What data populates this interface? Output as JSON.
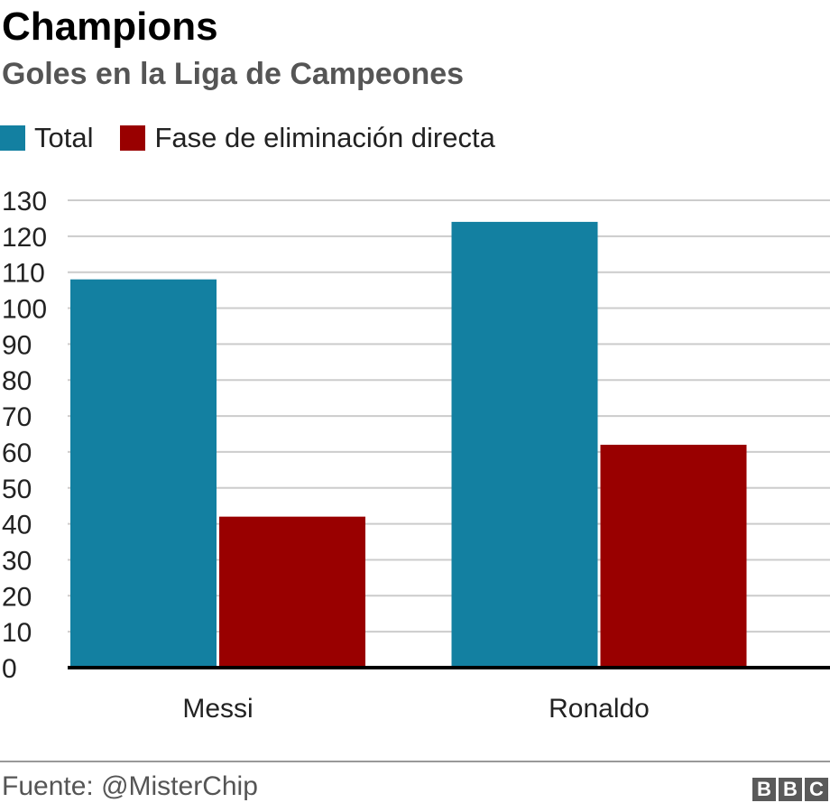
{
  "header": {
    "title": "Champions",
    "subtitle": "Goles en la Liga de Campeones"
  },
  "footer": {
    "source": "Fuente: @MisterChip",
    "logo_letters": [
      "B",
      "B",
      "C"
    ]
  },
  "chart_data": {
    "type": "bar",
    "categories": [
      "Messi",
      "Ronaldo"
    ],
    "series": [
      {
        "name": "Total",
        "color": "#1380A1",
        "values": [
          108,
          124
        ]
      },
      {
        "name": "Fase de eliminación directa",
        "color": "#990000",
        "values": [
          42,
          62
        ]
      }
    ],
    "ylim": [
      0,
      130
    ],
    "yticks": [
      0,
      10,
      20,
      30,
      40,
      50,
      60,
      70,
      80,
      90,
      100,
      110,
      120,
      130
    ],
    "grid": true,
    "legend_position": "top-left"
  }
}
